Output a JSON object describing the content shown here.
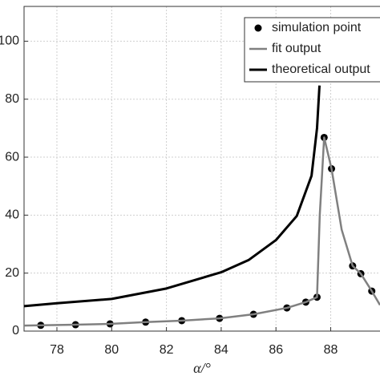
{
  "chart_data": {
    "type": "line",
    "xlabel": "α/°",
    "xlim": [
      76.8,
      89.8
    ],
    "xticks": [
      78,
      80,
      82,
      84,
      86,
      88
    ],
    "ylim": [
      0,
      112
    ],
    "yticks": [
      0,
      20,
      40,
      60,
      80,
      100
    ],
    "grid": true,
    "legend": "upper right",
    "series": [
      {
        "name": "simulation point",
        "color": "#000000",
        "style": "markers",
        "x": [
          77.41,
          78.68,
          79.94,
          81.24,
          82.56,
          83.94,
          85.18,
          86.4,
          87.09,
          87.5,
          87.76,
          88.03,
          88.8,
          89.1,
          89.5
        ],
        "values": [
          2.0,
          2.2,
          2.5,
          3.1,
          3.6,
          4.4,
          5.8,
          8.0,
          10.0,
          11.7,
          66.8,
          56.0,
          22.5,
          19.8,
          13.8
        ]
      },
      {
        "name": "fit output",
        "color": "#808080",
        "style": "line",
        "x": [
          76.8,
          77.41,
          78.68,
          79.94,
          81.24,
          82.56,
          83.94,
          85.18,
          86.4,
          87.09,
          87.5,
          87.6,
          87.76,
          88.03,
          88.4,
          88.8,
          89.1,
          89.5,
          89.8
        ],
        "values": [
          1.9,
          2.0,
          2.2,
          2.5,
          3.1,
          3.6,
          4.4,
          5.8,
          8.0,
          10.0,
          11.7,
          40.0,
          66.8,
          56.0,
          35.0,
          22.5,
          19.8,
          13.8,
          9.0
        ]
      },
      {
        "name": "theoretical output",
        "color": "#000000",
        "style": "line",
        "x": [
          76.8,
          78,
          80,
          82,
          84,
          85,
          86,
          86.76,
          87.3,
          87.5,
          87.59
        ],
        "values": [
          8.6,
          9.6,
          11.1,
          14.7,
          20.3,
          24.5,
          31.4,
          39.7,
          53.6,
          70.0,
          84.7
        ]
      }
    ]
  }
}
